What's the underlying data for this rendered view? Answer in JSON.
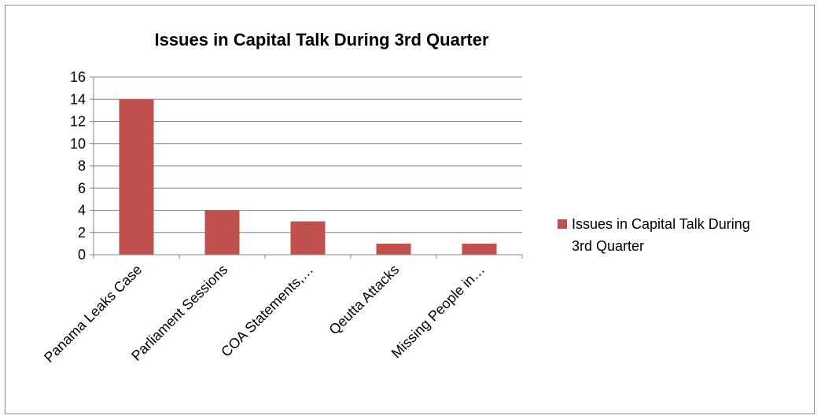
{
  "chart_data": {
    "type": "bar",
    "title": "Issues in Capital Talk During 3rd Quarter",
    "categories": [
      "Panama Leaks Case",
      "Parliament Sessions",
      "COA Statements,…",
      "Qeutta Attacks",
      "Missing People in…"
    ],
    "series": [
      {
        "name": "Issues in Capital Talk During 3rd Quarter",
        "values": [
          14,
          4,
          3,
          1,
          1
        ],
        "color": "#c0504d"
      }
    ],
    "yticks": [
      "0",
      "2",
      "4",
      "6",
      "8",
      "10",
      "12",
      "14",
      "16"
    ],
    "ylim": [
      0,
      16
    ],
    "grid": true,
    "legend_position": "right",
    "legend": {
      "line1": "Issues in Capital Talk During",
      "line2": "3rd Quarter"
    }
  }
}
